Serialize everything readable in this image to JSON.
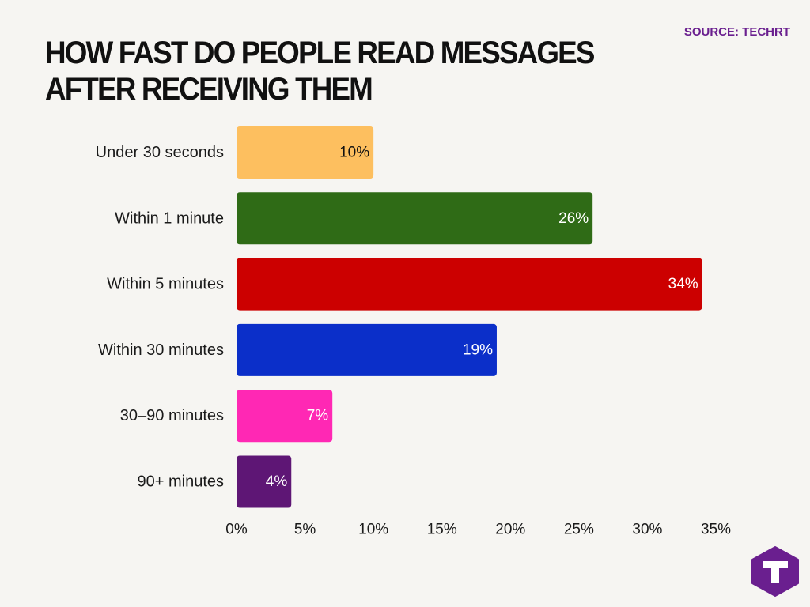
{
  "header": {
    "source": "SOURCE: TECHRT",
    "title": "HOW FAST DO PEOPLE READ MESSAGES AFTER RECEIVING THEM"
  },
  "logo": {
    "icon": "techrt-t-logo-icon",
    "color": "#6a1f8f"
  },
  "chart_data": {
    "type": "bar",
    "orientation": "horizontal",
    "title": "HOW FAST DO PEOPLE READ MESSAGES AFTER RECEIVING THEM",
    "xlabel": "",
    "ylabel": "",
    "categories": [
      "Under 30 seconds",
      "Within 1 minute",
      "Within 5 minutes",
      "Within 30 minutes",
      "30–90 minutes",
      "90+ minutes"
    ],
    "values": [
      10,
      26,
      34,
      19,
      7,
      4
    ],
    "data_labels": [
      "10%",
      "26%",
      "34%",
      "19%",
      "7%",
      "4%"
    ],
    "colors": [
      "#fdbf5f",
      "#2f6b16",
      "#cc0000",
      "#0b2fc9",
      "#ff28b4",
      "#5e1675"
    ],
    "label_colors": [
      "#111111",
      "#ffffff",
      "#ffffff",
      "#ffffff",
      "#ffffff",
      "#ffffff"
    ],
    "xlim": [
      0,
      35
    ],
    "xticks": [
      0,
      5,
      10,
      15,
      20,
      25,
      30,
      35
    ],
    "xtick_labels": [
      "0%",
      "5%",
      "10%",
      "15%",
      "20%",
      "25%",
      "30%",
      "35%"
    ],
    "grid": false,
    "legend": "none"
  }
}
